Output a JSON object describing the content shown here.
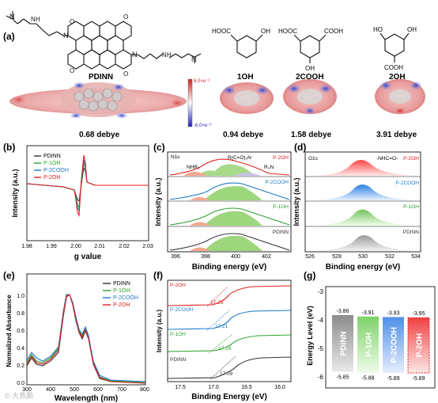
{
  "panel_a": {
    "label": "(a)",
    "molecules": [
      {
        "name": "PDINN",
        "dipole": "0.68 debye"
      },
      {
        "name": "1OH",
        "dipole": "0.94 debye",
        "groups": [
          "HOOC",
          "OH"
        ]
      },
      {
        "name": "2COOH",
        "dipole": "1.58 debye",
        "groups": [
          "HOOC",
          "COOH",
          "OH"
        ]
      },
      {
        "name": "2OH",
        "dipole": "3.91 debye",
        "groups": [
          "HO",
          "OH",
          "COOH"
        ]
      }
    ],
    "esp_scale": {
      "max": "6.0×e⁻²",
      "min": "-6.0×e⁻²"
    },
    "pdinn_atoms": {
      "amine_n": "N",
      "imide_n": "N",
      "carbonyl_o": "O",
      "amine_h": "H"
    }
  },
  "panel_b": {
    "label": "(b)",
    "xlabel": "g value",
    "ylabel": "Intensity (a.u.)",
    "xticks": [
      "1.98",
      "1.99",
      "2.00",
      "2.01",
      "2.02",
      "2.03"
    ],
    "legend": [
      "PDINN",
      "P-1OH",
      "P-2COOH",
      "P-2OH"
    ]
  },
  "panel_c": {
    "label": "(c)",
    "core": "N1s",
    "xlabel": "Binding energy (eV)",
    "ylabel": "Intensity (a.u.)",
    "xticks": [
      "396",
      "398",
      "400",
      "402"
    ],
    "samples": [
      "P-2OH",
      "P-2COOH",
      "P-1OH",
      "PDINN"
    ],
    "peak_labels": [
      "NHR₂",
      "R(C=O)₂N",
      "R₃N"
    ]
  },
  "panel_d": {
    "label": "(d)",
    "core": "O1s",
    "xlabel": "Binding energy (eV)",
    "ylabel": "Intensity (a.u.)",
    "xticks": [
      "526",
      "528",
      "530",
      "532",
      "534"
    ],
    "samples": [
      "P-2OH",
      "P-2COOH",
      "P-1OH",
      "PDINN"
    ],
    "peak_label": "-NHC=O-"
  },
  "panel_e": {
    "label": "(e)",
    "xlabel": "Wavelength (nm)",
    "ylabel": "Normalized Absorbance",
    "xticks": [
      "300",
      "400",
      "500",
      "600",
      "700",
      "800"
    ],
    "yticks": [
      "0.0",
      "0.2",
      "0.4",
      "0.6",
      "0.8",
      "1.0"
    ],
    "legend": [
      "PDINN",
      "P-1OH",
      "P-2COOH",
      "P-2OH"
    ],
    "watermark": "© 大燕鹏"
  },
  "panel_f": {
    "label": "(f)",
    "xlabel": "Binding Energy (eV)",
    "ylabel": "Intensity (a.u.)",
    "xticks": [
      "17.5",
      "17.0",
      "16.5",
      "16.0"
    ],
    "samples": [
      {
        "name": "P-2OH",
        "value": "17.29"
      },
      {
        "name": "P-2COOH",
        "value": "17.21"
      },
      {
        "name": "P-1OH",
        "value": "17.16"
      },
      {
        "name": "PDINN",
        "value": "17.09"
      }
    ]
  },
  "panel_g": {
    "label": "(g)",
    "ylabel": "Energy Level (eV)",
    "yticks": [
      "-3",
      "-4",
      "-5",
      "-6"
    ],
    "bars": [
      {
        "name": "PDINN",
        "lumo": "-3.86",
        "homo": "-5.85"
      },
      {
        "name": "P-1OH",
        "lumo": "-3.91",
        "homo": "-5.88"
      },
      {
        "name": "P-2COOH",
        "lumo": "-3.93",
        "homo": "-5.89"
      },
      {
        "name": "P-2OH",
        "lumo": "-3.95",
        "homo": "-5.89"
      }
    ]
  },
  "colors": {
    "pdinn": "#333333",
    "p1oh": "#2ca02c",
    "p2cooh": "#1f78c8",
    "p2oh": "#e02020"
  }
}
